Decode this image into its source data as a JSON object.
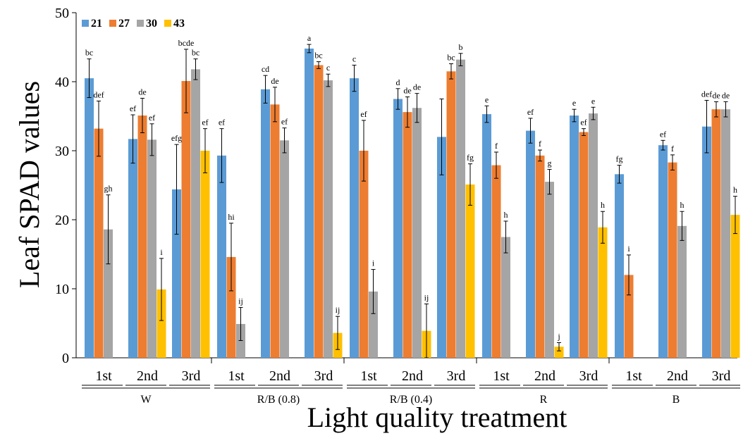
{
  "chart_data": {
    "type": "bar",
    "ylabel": "Leaf SPAD values",
    "xlabel": "Light quality treatment",
    "ylim": [
      0,
      50
    ],
    "yticks": [
      0,
      10,
      20,
      30,
      40,
      50
    ],
    "legend_placement": "top-left",
    "series": [
      {
        "name": "21",
        "color": "#5B9BD5"
      },
      {
        "name": "27",
        "color": "#ED7D31"
      },
      {
        "name": "30",
        "color": "#A5A5A5"
      },
      {
        "name": "43",
        "color": "#FFC000"
      }
    ],
    "groups": [
      {
        "label": "W",
        "subgroups": [
          {
            "label": "1st",
            "bars": [
              {
                "series": 0,
                "value": 40.5,
                "err": 2.8,
                "sig": "bc"
              },
              {
                "series": 1,
                "value": 33.2,
                "err": 4.0,
                "sig": "def"
              },
              {
                "series": 2,
                "value": 18.6,
                "err": 5.0,
                "sig": "gh"
              }
            ]
          },
          {
            "label": "2nd",
            "bars": [
              {
                "series": 0,
                "value": 31.7,
                "err": 3.5,
                "sig": "ef"
              },
              {
                "series": 1,
                "value": 35.1,
                "err": 2.5,
                "sig": "de"
              },
              {
                "series": 2,
                "value": 31.6,
                "err": 2.3,
                "sig": "ef"
              },
              {
                "series": 3,
                "value": 9.9,
                "err": 4.5,
                "sig": "i"
              }
            ]
          },
          {
            "label": "3rd",
            "bars": [
              {
                "series": 0,
                "value": 24.4,
                "err": 6.5,
                "sig": "efg"
              },
              {
                "series": 1,
                "value": 40.1,
                "err": 4.6,
                "sig": "bcde"
              },
              {
                "series": 2,
                "value": 41.8,
                "err": 1.5,
                "sig": "bc"
              },
              {
                "series": 3,
                "value": 30.0,
                "err": 3.2,
                "sig": "ef"
              }
            ]
          }
        ]
      },
      {
        "label": "R/B (0.8)",
        "subgroups": [
          {
            "label": "1st",
            "bars": [
              {
                "series": 0,
                "value": 29.3,
                "err": 3.9,
                "sig": "ef"
              },
              {
                "series": 1,
                "value": 14.6,
                "err": 4.9,
                "sig": "hi"
              },
              {
                "series": 2,
                "value": 4.9,
                "err": 2.4,
                "sig": "ij"
              }
            ]
          },
          {
            "label": "2nd",
            "bars": [
              {
                "series": 0,
                "value": 38.9,
                "err": 2.0,
                "sig": "cd"
              },
              {
                "series": 1,
                "value": 36.7,
                "err": 2.5,
                "sig": "de"
              },
              {
                "series": 2,
                "value": 31.5,
                "err": 1.8,
                "sig": "ef"
              }
            ]
          },
          {
            "label": "3rd",
            "bars": [
              {
                "series": 0,
                "value": 44.8,
                "err": 0.6,
                "sig": "a"
              },
              {
                "series": 1,
                "value": 42.4,
                "err": 0.5,
                "sig": "bc"
              },
              {
                "series": 2,
                "value": 40.2,
                "err": 0.9,
                "sig": "c"
              },
              {
                "series": 3,
                "value": 3.6,
                "err": 2.4,
                "sig": "ij"
              }
            ]
          }
        ]
      },
      {
        "label": "R/B (0.4)",
        "subgroups": [
          {
            "label": "1st",
            "bars": [
              {
                "series": 0,
                "value": 40.5,
                "err": 1.9,
                "sig": "c"
              },
              {
                "series": 1,
                "value": 30.0,
                "err": 4.4,
                "sig": "ef"
              },
              {
                "series": 2,
                "value": 9.6,
                "err": 3.2,
                "sig": "i"
              }
            ]
          },
          {
            "label": "2nd",
            "bars": [
              {
                "series": 0,
                "value": 37.5,
                "err": 1.5,
                "sig": "d"
              },
              {
                "series": 1,
                "value": 35.6,
                "err": 2.2,
                "sig": "de"
              },
              {
                "series": 2,
                "value": 36.2,
                "err": 2.1,
                "sig": "de"
              },
              {
                "series": 3,
                "value": 3.9,
                "err": 3.9,
                "sig": "ij"
              }
            ]
          },
          {
            "label": "3rd",
            "bars": [
              {
                "series": 0,
                "value": 32.0,
                "err": 5.5,
                "sig": ""
              },
              {
                "series": 1,
                "value": 41.5,
                "err": 1.1,
                "sig": "bc"
              },
              {
                "series": 2,
                "value": 43.2,
                "err": 0.9,
                "sig": "b"
              },
              {
                "series": 3,
                "value": 25.1,
                "err": 3.0,
                "sig": "fg"
              }
            ]
          }
        ]
      },
      {
        "label": "R",
        "subgroups": [
          {
            "label": "1st",
            "bars": [
              {
                "series": 0,
                "value": 35.3,
                "err": 1.2,
                "sig": "e"
              },
              {
                "series": 1,
                "value": 27.9,
                "err": 1.9,
                "sig": "f"
              },
              {
                "series": 2,
                "value": 17.5,
                "err": 2.3,
                "sig": "h"
              }
            ]
          },
          {
            "label": "2nd",
            "bars": [
              {
                "series": 0,
                "value": 32.9,
                "err": 1.8,
                "sig": "ef"
              },
              {
                "series": 1,
                "value": 29.3,
                "err": 0.8,
                "sig": "f"
              },
              {
                "series": 2,
                "value": 25.5,
                "err": 1.8,
                "sig": "g"
              },
              {
                "series": 3,
                "value": 1.6,
                "err": 0.6,
                "sig": "j"
              }
            ]
          },
          {
            "label": "3rd",
            "bars": [
              {
                "series": 0,
                "value": 35.1,
                "err": 0.9,
                "sig": "e"
              },
              {
                "series": 1,
                "value": 32.7,
                "err": 0.5,
                "sig": "ef"
              },
              {
                "series": 2,
                "value": 35.4,
                "err": 0.9,
                "sig": "e"
              },
              {
                "series": 3,
                "value": 18.9,
                "err": 2.3,
                "sig": "h"
              }
            ]
          }
        ]
      },
      {
        "label": "B",
        "subgroups": [
          {
            "label": "1st",
            "bars": [
              {
                "series": 0,
                "value": 26.6,
                "err": 1.3,
                "sig": "fg"
              },
              {
                "series": 1,
                "value": 12.0,
                "err": 2.9,
                "sig": "i"
              }
            ]
          },
          {
            "label": "2nd",
            "bars": [
              {
                "series": 0,
                "value": 30.8,
                "err": 0.7,
                "sig": "ef"
              },
              {
                "series": 1,
                "value": 28.3,
                "err": 1.1,
                "sig": "f"
              },
              {
                "series": 2,
                "value": 19.1,
                "err": 2.1,
                "sig": "h"
              }
            ]
          },
          {
            "label": "3rd",
            "bars": [
              {
                "series": 0,
                "value": 33.5,
                "err": 3.8,
                "sig": "def"
              },
              {
                "series": 1,
                "value": 36.0,
                "err": 1.1,
                "sig": "de"
              },
              {
                "series": 2,
                "value": 36.0,
                "err": 1.1,
                "sig": "de"
              },
              {
                "series": 3,
                "value": 20.7,
                "err": 2.7,
                "sig": "h"
              }
            ]
          }
        ]
      }
    ]
  }
}
